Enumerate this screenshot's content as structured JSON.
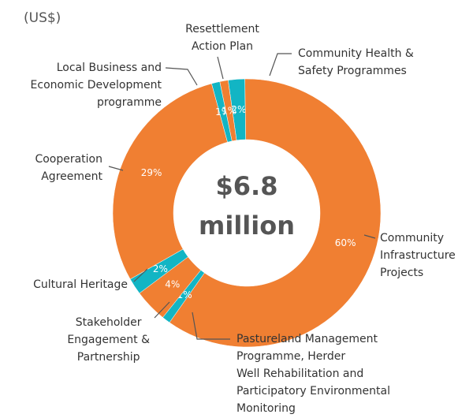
{
  "chart_data": {
    "type": "donut",
    "subtitle": "(US$)",
    "center_label": [
      "$6.8",
      "million"
    ],
    "categories": [
      "Community Health &\nSafety Programmes",
      "Community\nInfrastructure\nProjects",
      "Pastureland Management\nProgramme, Herder\nWell Rehabilitation and\nParticipatory Environmental\nMonitoring",
      "Stakeholder\nEngagement &\nPartnership",
      "Cultural Heritage",
      "Cooperation\nAgreement",
      "Local Business and\nEconomic Development\nprogramme",
      "Resettlement\nAction Plan"
    ],
    "values": [
      2,
      60,
      1,
      4,
      2,
      29,
      1,
      1
    ],
    "value_labels": [
      "2%",
      "60%",
      "1%",
      "4%",
      "2%",
      "29%",
      "1%",
      "1%"
    ],
    "colors": [
      "#12b5c4",
      "#f07f32",
      "#12b5c4",
      "#f07f32",
      "#12b5c4",
      "#f07f32",
      "#12b5c4",
      "#f07f32"
    ]
  }
}
